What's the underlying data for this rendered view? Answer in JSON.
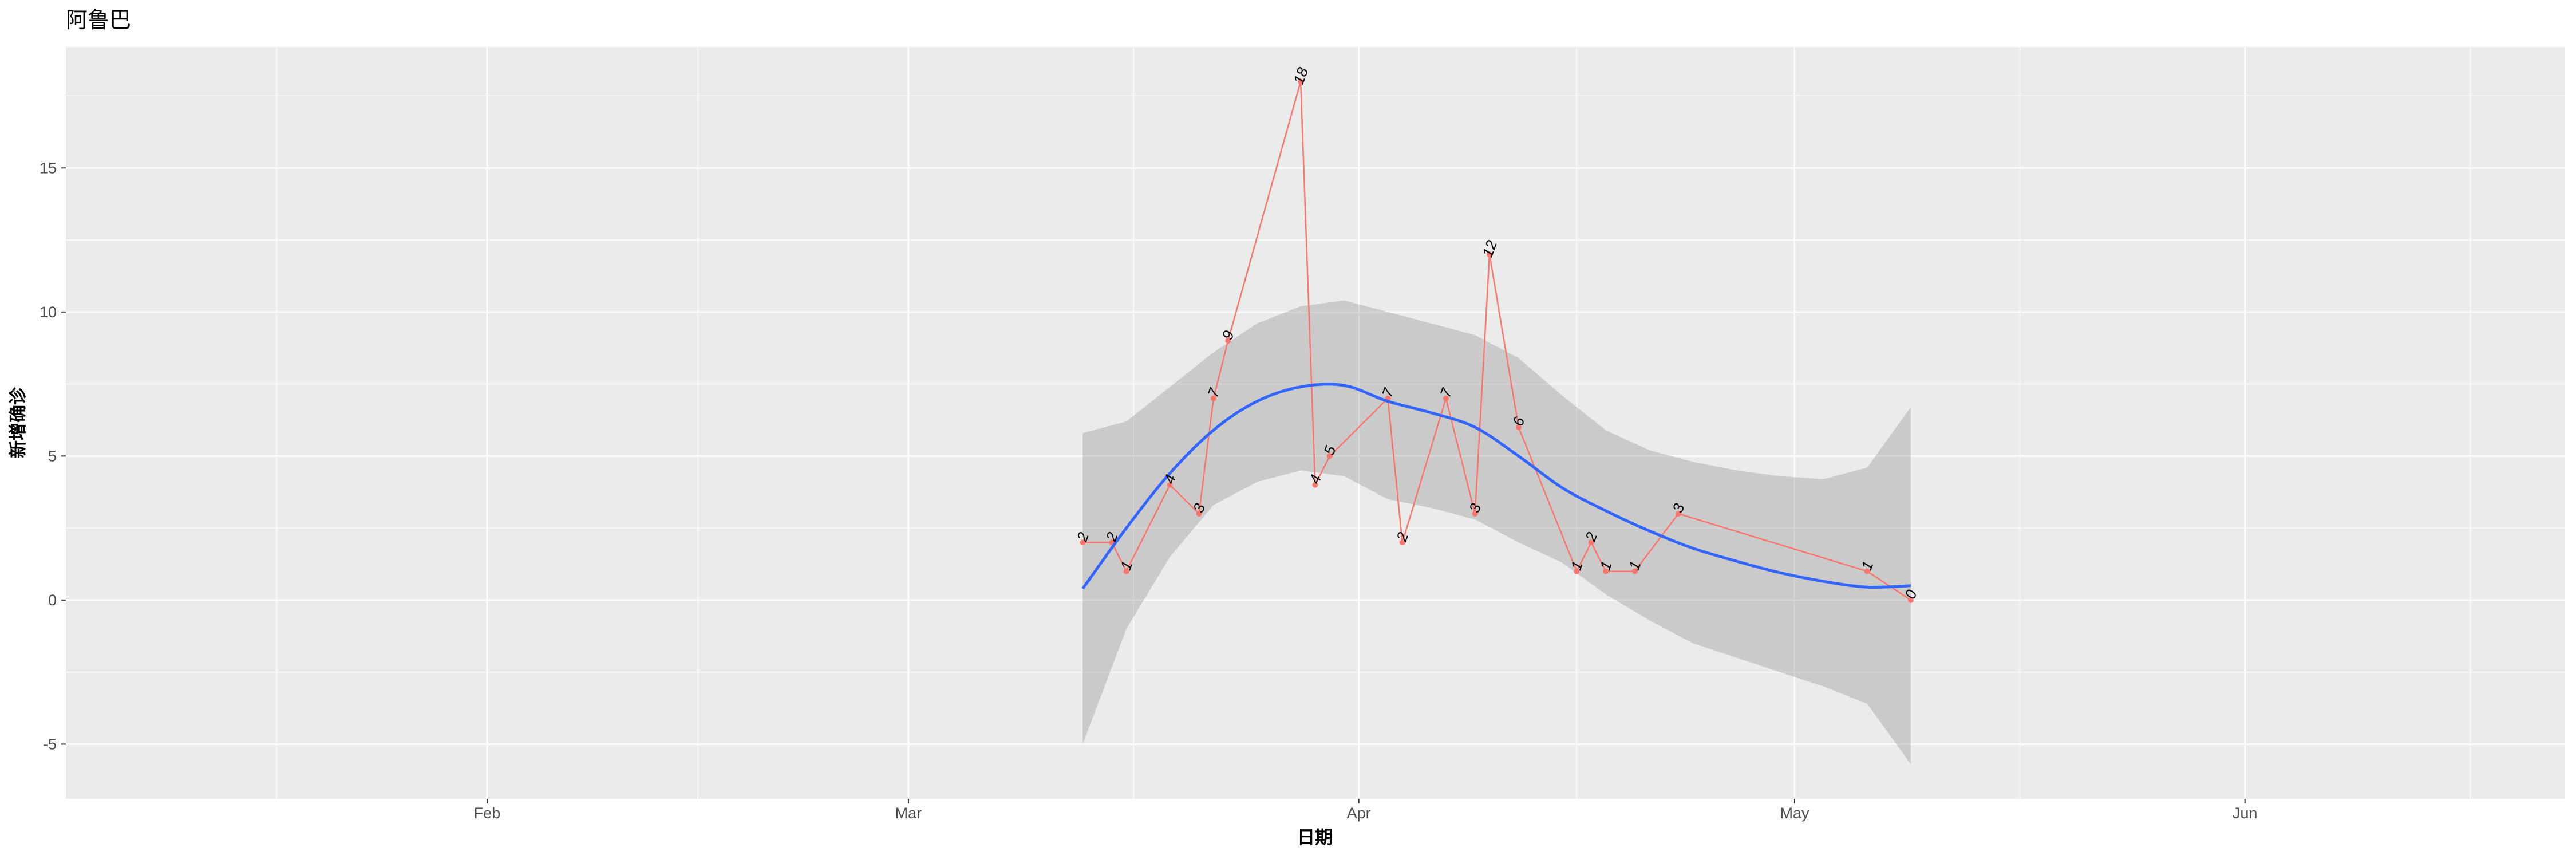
{
  "chart_data": {
    "type": "line",
    "title": "阿鲁巴",
    "xlabel": "日期",
    "ylabel": "新增确诊",
    "x_ticks": [
      "2020-02-01",
      "2020-03-01",
      "2020-04-01",
      "2020-05-01",
      "2020-06-01"
    ],
    "x_tick_labels": [
      "Feb",
      "Mar",
      "Apr",
      "May",
      "Jun"
    ],
    "x_range": [
      "2020-01-03",
      "2020-06-23"
    ],
    "y_ticks": [
      -5,
      0,
      5,
      10,
      15
    ],
    "y_tick_labels": [
      "-5",
      "0",
      "5",
      "10",
      "15"
    ],
    "ylim": [
      -6.9,
      19.2
    ],
    "grid": true,
    "series": [
      {
        "color": "#F8766D",
        "points": [
          {
            "x": "2020-03-13",
            "y": 2
          },
          {
            "x": "2020-03-15",
            "y": 2
          },
          {
            "x": "2020-03-16",
            "y": 1
          },
          {
            "x": "2020-03-19",
            "y": 4
          },
          {
            "x": "2020-03-21",
            "y": 3
          },
          {
            "x": "2020-03-22",
            "y": 7
          },
          {
            "x": "2020-03-23",
            "y": 9
          },
          {
            "x": "2020-03-28",
            "y": 18
          },
          {
            "x": "2020-03-29",
            "y": 4
          },
          {
            "x": "2020-03-30",
            "y": 5
          },
          {
            "x": "2020-04-03",
            "y": 7
          },
          {
            "x": "2020-04-04",
            "y": 2
          },
          {
            "x": "2020-04-07",
            "y": 7
          },
          {
            "x": "2020-04-09",
            "y": 3
          },
          {
            "x": "2020-04-10",
            "y": 12
          },
          {
            "x": "2020-04-12",
            "y": 6
          },
          {
            "x": "2020-04-16",
            "y": 1
          },
          {
            "x": "2020-04-17",
            "y": 2
          },
          {
            "x": "2020-04-18",
            "y": 1
          },
          {
            "x": "2020-04-20",
            "y": 1
          },
          {
            "x": "2020-04-23",
            "y": 3
          },
          {
            "x": "2020-05-06",
            "y": 1
          },
          {
            "x": "2020-05-09",
            "y": 0
          }
        ]
      }
    ],
    "smooth": {
      "color": "#3366FF",
      "band_color": "#999999",
      "points": [
        {
          "x": "2020-03-13",
          "y": 0.4,
          "lo": -5.0,
          "hi": 5.8
        },
        {
          "x": "2020-03-16",
          "y": 2.5,
          "lo": -1.0,
          "hi": 6.2
        },
        {
          "x": "2020-03-19",
          "y": 4.4,
          "lo": 1.5,
          "hi": 7.4
        },
        {
          "x": "2020-03-22",
          "y": 5.9,
          "lo": 3.3,
          "hi": 8.6
        },
        {
          "x": "2020-03-25",
          "y": 6.9,
          "lo": 4.1,
          "hi": 9.6
        },
        {
          "x": "2020-03-28",
          "y": 7.4,
          "lo": 4.5,
          "hi": 10.2
        },
        {
          "x": "2020-03-31",
          "y": 7.45,
          "lo": 4.3,
          "hi": 10.4
        },
        {
          "x": "2020-04-03",
          "y": 6.9,
          "lo": 3.5,
          "hi": 10.0
        },
        {
          "x": "2020-04-06",
          "y": 6.5,
          "lo": 3.2,
          "hi": 9.6
        },
        {
          "x": "2020-04-09",
          "y": 6.0,
          "lo": 2.8,
          "hi": 9.2
        },
        {
          "x": "2020-04-12",
          "y": 5.0,
          "lo": 2.0,
          "hi": 8.4
        },
        {
          "x": "2020-04-15",
          "y": 3.9,
          "lo": 1.3,
          "hi": 7.1
        },
        {
          "x": "2020-04-18",
          "y": 3.1,
          "lo": 0.2,
          "hi": 5.9
        },
        {
          "x": "2020-04-21",
          "y": 2.4,
          "lo": -0.7,
          "hi": 5.2
        },
        {
          "x": "2020-04-24",
          "y": 1.8,
          "lo": -1.5,
          "hi": 4.8
        },
        {
          "x": "2020-04-27",
          "y": 1.35,
          "lo": -2.0,
          "hi": 4.5
        },
        {
          "x": "2020-04-30",
          "y": 0.95,
          "lo": -2.5,
          "hi": 4.3
        },
        {
          "x": "2020-05-03",
          "y": 0.65,
          "lo": -3.0,
          "hi": 4.2
        },
        {
          "x": "2020-05-06",
          "y": 0.45,
          "lo": -3.6,
          "hi": 4.6
        },
        {
          "x": "2020-05-09",
          "y": 0.5,
          "lo": -5.7,
          "hi": 6.7
        }
      ]
    }
  }
}
